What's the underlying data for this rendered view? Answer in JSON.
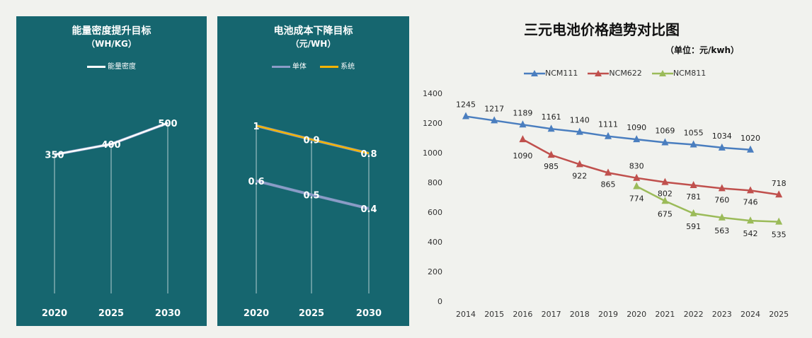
{
  "chart_data": [
    {
      "type": "line",
      "title": "能量密度提升目标",
      "subtitle": "（WH/KG）",
      "categories": [
        "2020",
        "2025",
        "2030"
      ],
      "series": [
        {
          "name": "能量密度",
          "values": [
            350,
            400,
            500
          ],
          "labels": [
            "350",
            "400",
            "500"
          ],
          "color": "#ffffff"
        }
      ],
      "ylim": [
        0,
        520
      ],
      "grid": false,
      "legend": "top"
    },
    {
      "type": "line",
      "title": "电池成本下降目标",
      "subtitle": "（元/WH）",
      "categories": [
        "2020",
        "2025",
        "2030"
      ],
      "series": [
        {
          "name": "单体",
          "values": [
            0.6,
            0.5,
            0.4
          ],
          "labels": [
            "0.6",
            "0.5",
            "0.4"
          ],
          "color": "#8b9cc7"
        },
        {
          "name": "系统",
          "values": [
            1.0,
            0.9,
            0.8
          ],
          "labels": [
            "1",
            "0.9",
            "0.8"
          ],
          "color": "#f5b400"
        }
      ],
      "ylim": [
        0,
        1.05
      ],
      "grid": false,
      "legend": "top"
    },
    {
      "type": "line",
      "title": "三元电池价格趋势对比图",
      "unit": "（单位：元/kwh）",
      "categories": [
        "2014",
        "2015",
        "2016",
        "2017",
        "2018",
        "2019",
        "2020",
        "2021",
        "2022",
        "2023",
        "2024",
        "2025"
      ],
      "yticks": [
        "0",
        "200",
        "400",
        "600",
        "800",
        "1000",
        "1200",
        "1400"
      ],
      "ylim": [
        0,
        1400
      ],
      "series": [
        {
          "name": "NCM111",
          "color": "#4a7ebf",
          "values": [
            1245,
            1217,
            1189,
            1161,
            1140,
            1111,
            1090,
            1069,
            1055,
            1034,
            1020,
            null
          ]
        },
        {
          "name": "NCM622",
          "color": "#c0504d",
          "values": [
            null,
            null,
            1090,
            985,
            922,
            865,
            830,
            802,
            781,
            760,
            746,
            718
          ]
        },
        {
          "name": "NCM811",
          "color": "#9bbb59",
          "values": [
            null,
            null,
            null,
            null,
            null,
            null,
            774,
            675,
            591,
            563,
            542,
            535
          ]
        }
      ],
      "grid": false,
      "legend": "top"
    }
  ]
}
